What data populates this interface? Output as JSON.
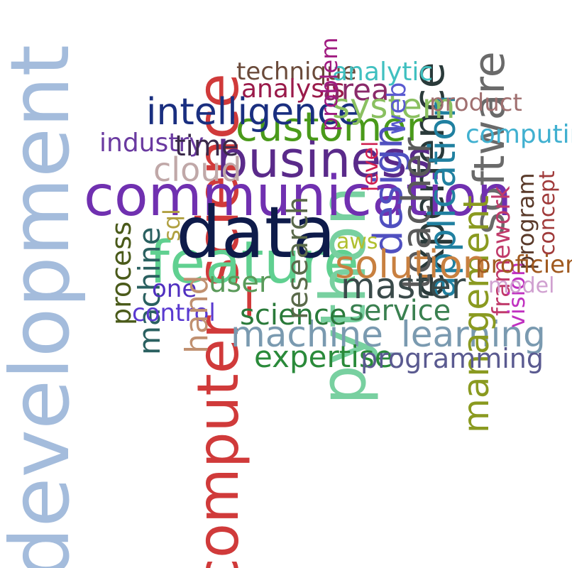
{
  "words": [
    {
      "id": "development",
      "text": "development",
      "color": "#a4bcdc",
      "rotated": true
    },
    {
      "id": "computer-science",
      "text": "computer_science",
      "color": "#d03a3a",
      "rotated": true
    },
    {
      "id": "communication",
      "text": "communication",
      "color": "#7030b0",
      "rotated": false
    },
    {
      "id": "data",
      "text": "data",
      "color": "#0e1b4a",
      "rotated": false
    },
    {
      "id": "business",
      "text": "business",
      "color": "#5a2a8a",
      "rotated": false
    },
    {
      "id": "customer",
      "text": "customer",
      "color": "#4a9a1a",
      "rotated": false
    },
    {
      "id": "intelligence",
      "text": "intelligence",
      "color": "#1a2f80",
      "rotated": false
    },
    {
      "id": "machine-learning",
      "text": "machine_learning",
      "color": "#7a9ab0",
      "rotated": false
    },
    {
      "id": "python",
      "text": "python",
      "color": "#78d0a0",
      "rotated": true
    },
    {
      "id": "design",
      "text": "design",
      "color": "#5050c0",
      "rotated": true
    },
    {
      "id": "master",
      "text": "master",
      "color": "#3a4a4a",
      "rotated": false
    },
    {
      "id": "solution",
      "text": "solution",
      "color": "#c88040",
      "rotated": false
    },
    {
      "id": "service",
      "text": "service",
      "color": "#3a8050",
      "rotated": false
    },
    {
      "id": "science",
      "text": "science",
      "color": "#2a7a3a",
      "rotated": false
    },
    {
      "id": "expertise",
      "text": "expertise",
      "color": "#2a8a3a",
      "rotated": false
    },
    {
      "id": "programming",
      "text": "programming",
      "color": "#5a5a90",
      "rotated": false
    },
    {
      "id": "management",
      "text": "management",
      "color": "#8a9a20",
      "rotated": true
    },
    {
      "id": "application",
      "text": "application",
      "color": "#2080a0",
      "rotated": true
    },
    {
      "id": "teacher",
      "text": "teacher",
      "color": "#5a5a5a",
      "rotated": true
    },
    {
      "id": "technique",
      "text": "technique",
      "color": "#6a4a3a",
      "rotated": false
    },
    {
      "id": "analytic",
      "text": "analytic",
      "color": "#40c0c0",
      "rotated": false
    },
    {
      "id": "analysis",
      "text": "analysis",
      "color": "#9a1a4a",
      "rotated": false
    },
    {
      "id": "area",
      "text": "area",
      "color": "#8a2a6a",
      "rotated": false
    },
    {
      "id": "system",
      "text": "system",
      "color": "#8ac060",
      "rotated": false
    },
    {
      "id": "problem",
      "text": "problem",
      "color": "#a01a80",
      "rotated": true
    },
    {
      "id": "web",
      "text": "web",
      "color": "#5a5ad0",
      "rotated": true
    },
    {
      "id": "product",
      "text": "product",
      "color": "#a07070",
      "rotated": false
    },
    {
      "id": "computing",
      "text": "computing",
      "color": "#40b0d0",
      "rotated": false
    },
    {
      "id": "industry",
      "text": "industry",
      "color": "#6a3aa0",
      "rotated": false
    },
    {
      "id": "time",
      "text": "time",
      "color": "#3a2a4a",
      "rotated": false
    },
    {
      "id": "cloud",
      "text": "cloud",
      "color": "#c0a8a8",
      "rotated": false
    },
    {
      "id": "level",
      "text": "level",
      "color": "#d02050",
      "rotated": true
    },
    {
      "id": "framework",
      "text": "framework",
      "color": "#c03a6a",
      "rotated": true
    },
    {
      "id": "program",
      "text": "program",
      "color": "#5a3a2a",
      "rotated": true
    },
    {
      "id": "concept",
      "text": "concept",
      "color": "#a03a3a",
      "rotated": true
    },
    {
      "id": "proficiency",
      "text": "proficiency",
      "color": "#a05a20",
      "rotated": false
    },
    {
      "id": "model",
      "text": "model",
      "color": "#d0a0d0",
      "rotated": false
    },
    {
      "id": "vision",
      "text": "vision",
      "color": "#c030c0",
      "rotated": true
    },
    {
      "id": "process",
      "text": "process",
      "color": "#4a5a1a",
      "rotated": true
    },
    {
      "id": "machine",
      "text": "machine",
      "color": "#2a6060",
      "rotated": true
    },
    {
      "id": "sql",
      "text": "sql",
      "color": "#b0a040",
      "rotated": true
    },
    {
      "id": "one",
      "text": "one",
      "color": "#5030c0",
      "rotated": false
    },
    {
      "id": "user",
      "text": "user",
      "color": "#5a9a5a",
      "rotated": false
    },
    {
      "id": "control",
      "text": "control",
      "color": "#5a3ad0",
      "rotated": false
    },
    {
      "id": "hand",
      "text": "hand",
      "color": "#c09070",
      "rotated": true
    },
    {
      "id": "research",
      "text": "research",
      "color": "#5a6a4a",
      "rotated": true
    },
    {
      "id": "aws",
      "text": "aws",
      "color": "#b0c030",
      "rotated": false
    },
    {
      "id": "feature",
      "text": "feature",
      "color": "#60d090",
      "rotated": false
    },
    {
      "id": "experience",
      "text": "experience",
      "color": "#2a3a3a",
      "rotated": true
    },
    {
      "id": "software",
      "text": "software",
      "color": "#6a6a6a",
      "rotated": true
    }
  ]
}
